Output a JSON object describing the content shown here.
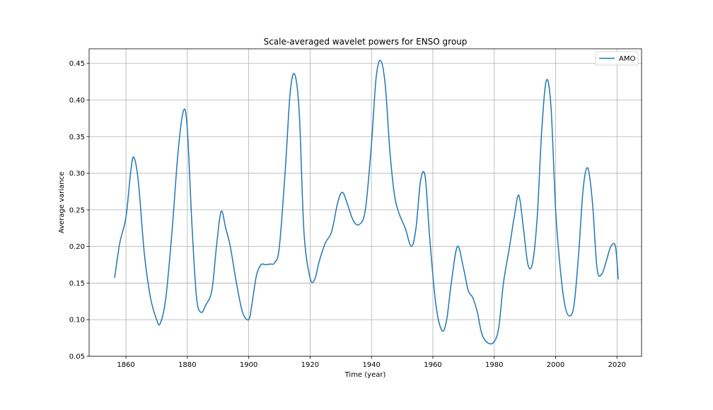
{
  "chart_data": {
    "type": "line",
    "title": "Scale-averaged wavelet powers for ENSO group",
    "xlabel": "Time (year)",
    "ylabel": "Average variance",
    "xlim": [
      1848,
      2028
    ],
    "ylim": [
      0.05,
      0.47
    ],
    "x_ticks": [
      1860,
      1880,
      1900,
      1920,
      1940,
      1960,
      1980,
      2000,
      2020
    ],
    "y_ticks": [
      0.05,
      0.1,
      0.15,
      0.2,
      0.25,
      0.3,
      0.35,
      0.4,
      0.45
    ],
    "x_tick_labels": [
      "1860",
      "1880",
      "1900",
      "1920",
      "1940",
      "1960",
      "1980",
      "2000",
      "2020"
    ],
    "y_tick_labels": [
      "0.05",
      "0.10",
      "0.15",
      "0.20",
      "0.25",
      "0.30",
      "0.35",
      "0.40",
      "0.45"
    ],
    "grid": true,
    "legend_position": "top-right",
    "series": [
      {
        "name": "AMO",
        "color": "#1f77b4",
        "x": [
          1856.3,
          1858,
          1860,
          1861.5,
          1862.5,
          1864,
          1866,
          1868,
          1870,
          1871.2,
          1873,
          1875,
          1877,
          1878.8,
          1880,
          1881.5,
          1883,
          1884.5,
          1886,
          1888,
          1889.5,
          1891,
          1892.5,
          1894,
          1896,
          1898,
          1900,
          1901,
          1902.5,
          1904,
          1905.5,
          1907,
          1908.5,
          1910,
          1912,
          1913.5,
          1915,
          1916.5,
          1918,
          1920,
          1921.5,
          1923,
          1925,
          1927,
          1929,
          1930.5,
          1932,
          1934,
          1936,
          1938,
          1940,
          1941.5,
          1943,
          1944.5,
          1946,
          1947.5,
          1949,
          1951,
          1953,
          1954.5,
          1956,
          1957.5,
          1959,
          1961,
          1963,
          1964.5,
          1966,
          1968,
          1970,
          1971.5,
          1973,
          1974.5,
          1976,
          1978,
          1980,
          1981.5,
          1983,
          1985,
          1986.5,
          1988,
          1989.5,
          1991,
          1992.5,
          1994,
          1995.5,
          1997,
          1998.5,
          2000,
          2001.5,
          2003,
          2004.5,
          2006,
          2007.5,
          2009,
          2010.5,
          2012,
          2013.5,
          2015,
          2016.5,
          2018,
          2019.5,
          2020.4
        ],
        "y": [
          0.157,
          0.205,
          0.24,
          0.3,
          0.322,
          0.29,
          0.19,
          0.13,
          0.1,
          0.095,
          0.13,
          0.22,
          0.33,
          0.386,
          0.36,
          0.23,
          0.13,
          0.11,
          0.12,
          0.14,
          0.2,
          0.248,
          0.225,
          0.2,
          0.15,
          0.11,
          0.1,
          0.12,
          0.16,
          0.175,
          0.175,
          0.176,
          0.178,
          0.2,
          0.31,
          0.41,
          0.435,
          0.38,
          0.22,
          0.157,
          0.155,
          0.18,
          0.205,
          0.22,
          0.26,
          0.274,
          0.26,
          0.236,
          0.23,
          0.25,
          0.34,
          0.43,
          0.454,
          0.42,
          0.33,
          0.27,
          0.245,
          0.225,
          0.2,
          0.225,
          0.29,
          0.295,
          0.21,
          0.12,
          0.085,
          0.1,
          0.15,
          0.2,
          0.17,
          0.14,
          0.13,
          0.11,
          0.08,
          0.068,
          0.07,
          0.09,
          0.15,
          0.2,
          0.24,
          0.27,
          0.225,
          0.175,
          0.178,
          0.24,
          0.36,
          0.427,
          0.39,
          0.25,
          0.17,
          0.12,
          0.105,
          0.12,
          0.19,
          0.28,
          0.307,
          0.26,
          0.17,
          0.162,
          0.18,
          0.2,
          0.2,
          0.155
        ]
      }
    ]
  }
}
